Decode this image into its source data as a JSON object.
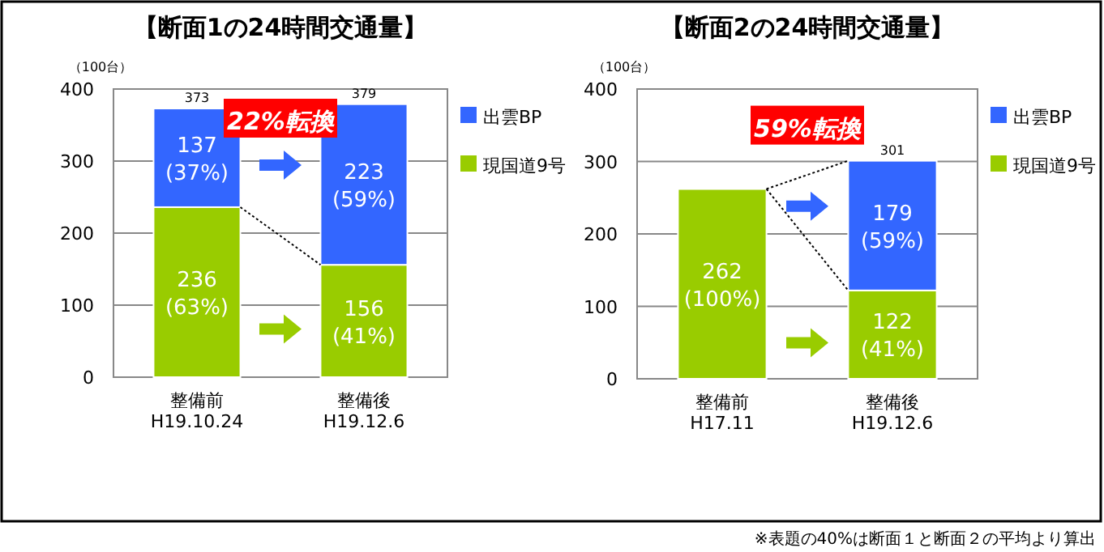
{
  "chart_data": [
    {
      "type": "bar",
      "stacked": true,
      "title": "【断面1の24時間交通量】",
      "ylabel": "（100台）",
      "categories": [
        "整備前\nH19.10.24",
        "整備後\nH19.12.6"
      ],
      "ylim": [
        0,
        400
      ],
      "yticks": [
        0,
        100,
        200,
        300,
        400
      ],
      "grid": "y",
      "legend": "right",
      "series": [
        {
          "name": "現国道9号",
          "color": "#99cc00",
          "values": [
            236,
            156
          ],
          "value_labels": [
            "236\n(63%)",
            "156\n(41%)"
          ]
        },
        {
          "name": "出雲BP",
          "color": "#3366ff",
          "values": [
            137,
            223
          ],
          "value_labels": [
            "137\n(37%)",
            "223\n(59%)"
          ]
        }
      ],
      "totals": [
        "373",
        "379"
      ],
      "annotations": [
        "22%転換"
      ]
    },
    {
      "type": "bar",
      "stacked": true,
      "title": "【断面2の24時間交通量】",
      "ylabel": "（100台）",
      "categories": [
        "整備前\nH17.11",
        "整備後\nH19.12.6"
      ],
      "ylim": [
        0,
        400
      ],
      "yticks": [
        0,
        100,
        200,
        300,
        400
      ],
      "grid": "y",
      "legend": "right",
      "series": [
        {
          "name": "現国道9号",
          "color": "#99cc00",
          "values": [
            262,
            122
          ],
          "value_labels": [
            "262\n(100%)",
            "122\n(41%)"
          ]
        },
        {
          "name": "出雲BP",
          "color": "#3366ff",
          "values": [
            null,
            179
          ],
          "value_labels": [
            null,
            "179\n(59%)"
          ]
        }
      ],
      "totals": [
        null,
        "301"
      ],
      "annotations": [
        {
          "text": "59%転換",
          "x": "整備後\nH19.12.6",
          "y": 301
        },
        "※表題の40%は断面１と断面２の平均より算出"
      ]
    }
  ]
}
